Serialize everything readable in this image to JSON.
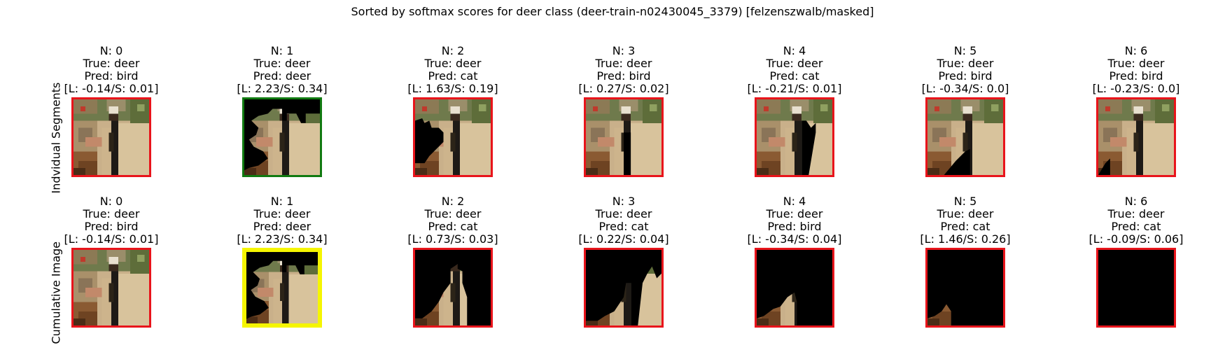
{
  "figure": {
    "title": "Sorted by softmax scores for deer class (deer-train-n02430045_3379) [felzenszwalb/masked]",
    "row_labels": [
      "Indvidual Segments",
      "Cumulative Image"
    ]
  },
  "colors": {
    "border_red": "#e8141b",
    "border_green": "#117a11",
    "border_yellow": "#f5f500",
    "mask_black": "#000000"
  },
  "rows": [
    {
      "key": "individual",
      "cells": [
        {
          "n": "N: 0",
          "true": "True: deer",
          "pred": "Pred: bird",
          "ls": "[L: -0.14/S: 0.01]",
          "border": "red",
          "mask": "none"
        },
        {
          "n": "N: 1",
          "true": "True: deer",
          "pred": "Pred: deer",
          "ls": "[L: 2.23/S: 0.34]",
          "border": "green",
          "mask": "seg1"
        },
        {
          "n": "N: 2",
          "true": "True: deer",
          "pred": "Pred: cat",
          "ls": "[L: 1.63/S: 0.19]",
          "border": "red",
          "mask": "seg2"
        },
        {
          "n": "N: 3",
          "true": "True: deer",
          "pred": "Pred: bird",
          "ls": "[L: 0.27/S: 0.02]",
          "border": "red",
          "mask": "seg3"
        },
        {
          "n": "N: 4",
          "true": "True: deer",
          "pred": "Pred: cat",
          "ls": "[L: -0.21/S: 0.01]",
          "border": "red",
          "mask": "seg4"
        },
        {
          "n": "N: 5",
          "true": "True: deer",
          "pred": "Pred: bird",
          "ls": "[L: -0.34/S: 0.0]",
          "border": "red",
          "mask": "seg5"
        },
        {
          "n": "N: 6",
          "true": "True: deer",
          "pred": "Pred: bird",
          "ls": "[L: -0.23/S: 0.0]",
          "border": "red",
          "mask": "seg6"
        }
      ]
    },
    {
      "key": "cumulative",
      "cells": [
        {
          "n": "N: 0",
          "true": "True: deer",
          "pred": "Pred: bird",
          "ls": "[L: -0.14/S: 0.01]",
          "border": "red",
          "mask": "none"
        },
        {
          "n": "N: 1",
          "true": "True: deer",
          "pred": "Pred: deer",
          "ls": "[L: 2.23/S: 0.34]",
          "border": "yellow",
          "mask": "cum1"
        },
        {
          "n": "N: 2",
          "true": "True: deer",
          "pred": "Pred: cat",
          "ls": "[L: 0.73/S: 0.03]",
          "border": "red",
          "mask": "cum2"
        },
        {
          "n": "N: 3",
          "true": "True: deer",
          "pred": "Pred: cat",
          "ls": "[L: 0.22/S: 0.04]",
          "border": "red",
          "mask": "cum3"
        },
        {
          "n": "N: 4",
          "true": "True: deer",
          "pred": "Pred: bird",
          "ls": "[L: -0.34/S: 0.04]",
          "border": "red",
          "mask": "cum4"
        },
        {
          "n": "N: 5",
          "true": "True: deer",
          "pred": "Pred: cat",
          "ls": "[L: 1.46/S: 0.26]",
          "border": "red",
          "mask": "cum5"
        },
        {
          "n": "N: 6",
          "true": "True: deer",
          "pred": "Pred: cat",
          "ls": "[L: -0.09/S: 0.06]",
          "border": "red",
          "mask": "full"
        }
      ]
    }
  ]
}
